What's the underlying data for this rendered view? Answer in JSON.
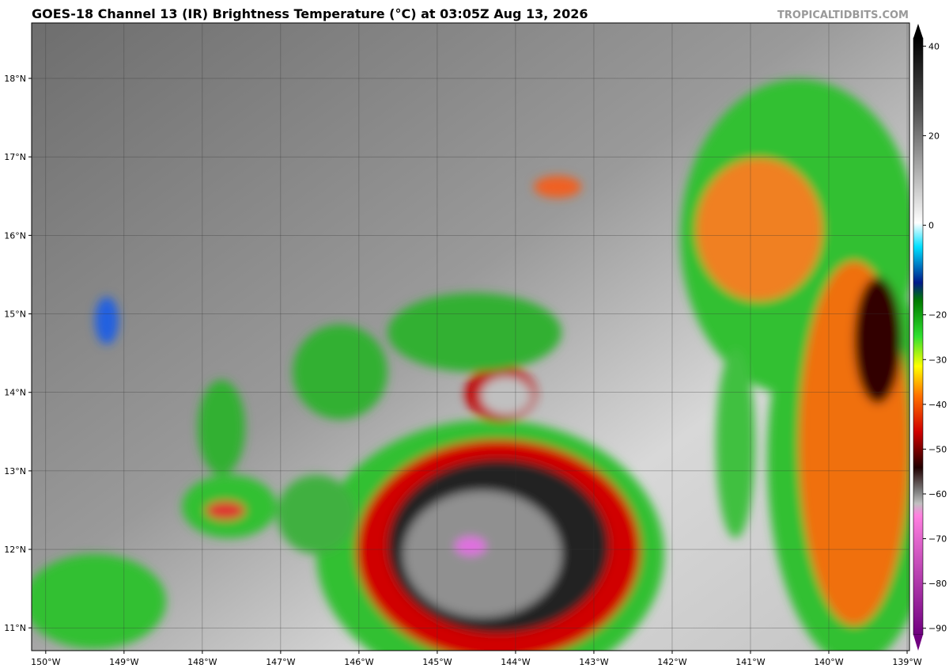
{
  "header": {
    "title": "GOES-18 Channel 13 (IR) Brightness Temperature (°C) at 03:05Z Aug 13, 2026",
    "watermark": "TROPICALTIDBITS.COM"
  },
  "map": {
    "lon_lim": [
      -150.18,
      -138.97
    ],
    "lat_lim": [
      10.71,
      18.706
    ],
    "lon_ticks": [
      {
        "value": -150,
        "label": "150°W"
      },
      {
        "value": -149,
        "label": "149°W"
      },
      {
        "value": -148,
        "label": "148°W"
      },
      {
        "value": -147,
        "label": "147°W"
      },
      {
        "value": -146,
        "label": "146°W"
      },
      {
        "value": -145,
        "label": "145°W"
      },
      {
        "value": -144,
        "label": "144°W"
      },
      {
        "value": -143,
        "label": "143°W"
      },
      {
        "value": -142,
        "label": "142°W"
      },
      {
        "value": -141,
        "label": "141°W"
      },
      {
        "value": -140,
        "label": "140°W"
      },
      {
        "value": -139,
        "label": "139°W"
      }
    ],
    "lat_ticks": [
      {
        "value": 18,
        "label": "18°N"
      },
      {
        "value": 17,
        "label": "17°N"
      },
      {
        "value": 16,
        "label": "16°N"
      },
      {
        "value": 15,
        "label": "15°N"
      },
      {
        "value": 14,
        "label": "14°N"
      },
      {
        "value": 13,
        "label": "13°N"
      },
      {
        "value": 12,
        "label": "12°N"
      },
      {
        "value": 11,
        "label": "11°N"
      }
    ]
  },
  "colorbar": {
    "lim": [
      -95,
      45
    ],
    "ticks": [
      40,
      20,
      0,
      {
        "value": -20,
        "label": "−20"
      },
      {
        "value": -30,
        "label": "−30"
      },
      {
        "value": -40,
        "label": "−40"
      },
      {
        "value": -50,
        "label": "−50"
      },
      {
        "value": -60,
        "label": "−60"
      },
      {
        "value": -70,
        "label": "−70"
      },
      {
        "value": -80,
        "label": "−80"
      },
      {
        "value": -90,
        "label": "−90"
      }
    ]
  }
}
